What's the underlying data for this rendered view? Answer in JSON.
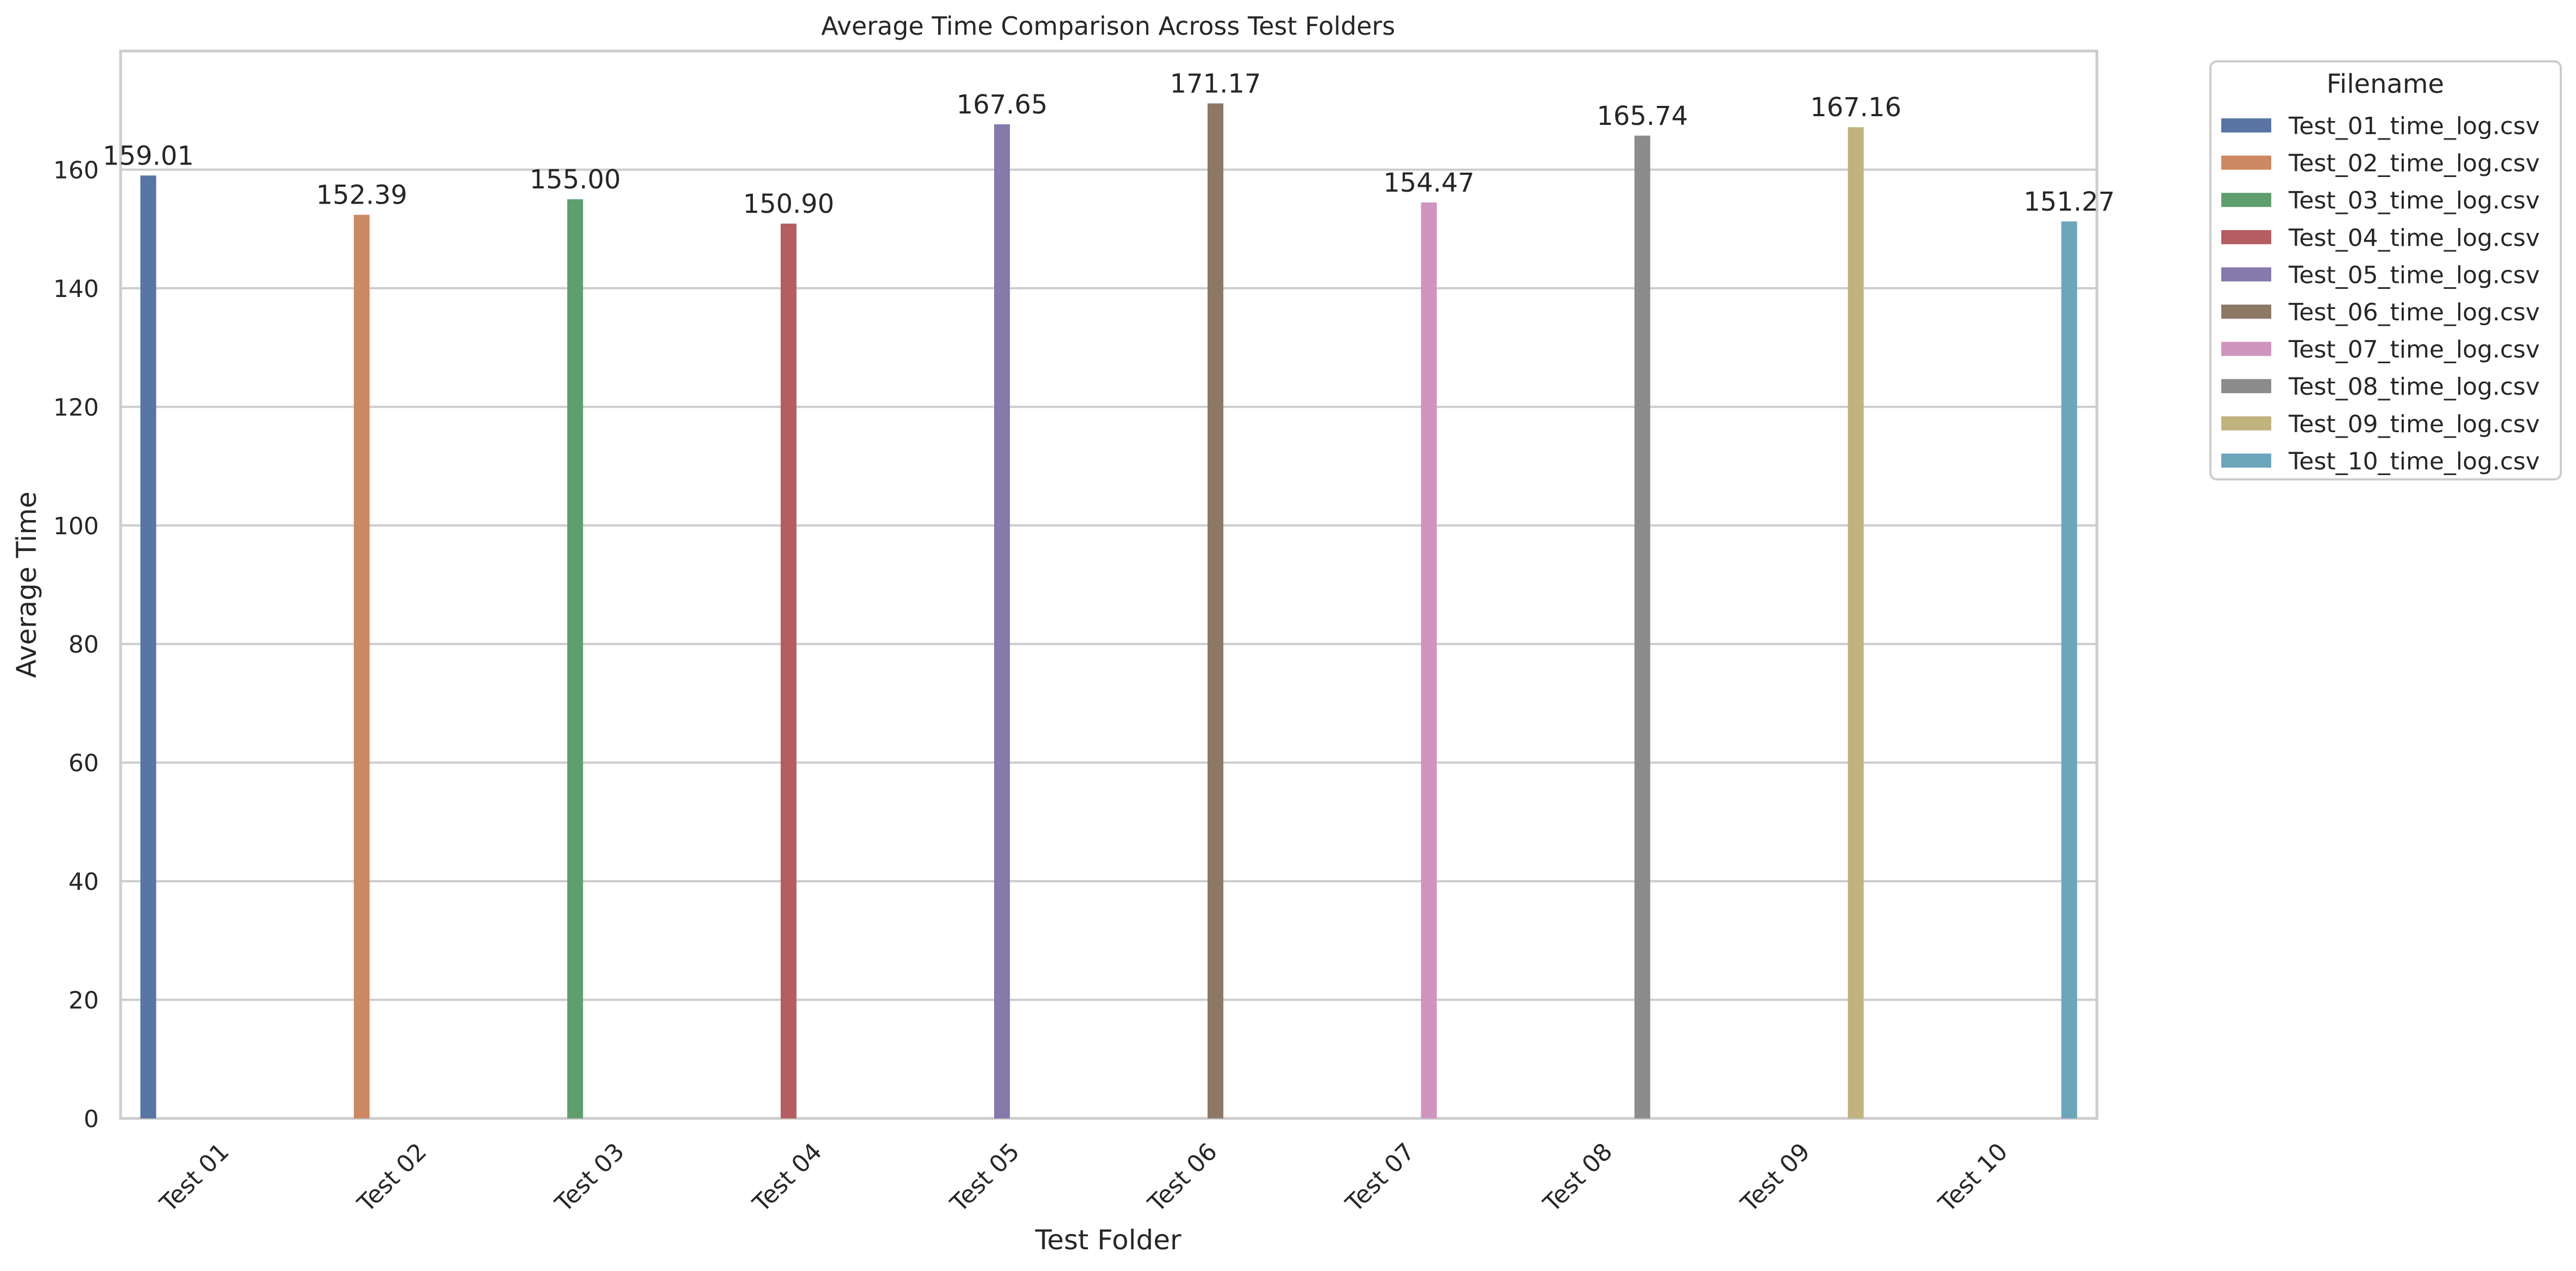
{
  "chart_data": {
    "type": "bar",
    "title": "Average Time Comparison Across Test Folders",
    "xlabel": "Test Folder",
    "ylabel": "Average Time",
    "ylim": [
      0,
      180
    ],
    "yticks": [
      0,
      20,
      40,
      60,
      80,
      100,
      120,
      140,
      160
    ],
    "grid": true,
    "legend_title": "Filename",
    "legend_position": "outside-top-right",
    "categories": [
      "Test 01",
      "Test 02",
      "Test 03",
      "Test 04",
      "Test 05",
      "Test 06",
      "Test 07",
      "Test 08",
      "Test 09",
      "Test 10"
    ],
    "series": [
      {
        "name": "Test_01_time_log.csv",
        "color": "#5875a4",
        "values": [
          159.01,
          null,
          null,
          null,
          null,
          null,
          null,
          null,
          null,
          null
        ],
        "label": "159.01"
      },
      {
        "name": "Test_02_time_log.csv",
        "color": "#cc8963",
        "values": [
          null,
          152.39,
          null,
          null,
          null,
          null,
          null,
          null,
          null,
          null
        ],
        "label": "152.39"
      },
      {
        "name": "Test_03_time_log.csv",
        "color": "#5f9e6e",
        "values": [
          null,
          null,
          155.0,
          null,
          null,
          null,
          null,
          null,
          null,
          null
        ],
        "label": "155.00"
      },
      {
        "name": "Test_04_time_log.csv",
        "color": "#b55d60",
        "values": [
          null,
          null,
          null,
          150.9,
          null,
          null,
          null,
          null,
          null,
          null
        ],
        "label": "150.90"
      },
      {
        "name": "Test_05_time_log.csv",
        "color": "#857aab",
        "values": [
          null,
          null,
          null,
          null,
          167.65,
          null,
          null,
          null,
          null,
          null
        ],
        "label": "167.65"
      },
      {
        "name": "Test_06_time_log.csv",
        "color": "#8d7866",
        "values": [
          null,
          null,
          null,
          null,
          null,
          171.17,
          null,
          null,
          null,
          null
        ],
        "label": "171.17"
      },
      {
        "name": "Test_07_time_log.csv",
        "color": "#d095bf",
        "values": [
          null,
          null,
          null,
          null,
          null,
          null,
          154.47,
          null,
          null,
          null
        ],
        "label": "154.47"
      },
      {
        "name": "Test_08_time_log.csv",
        "color": "#8c8c8c",
        "values": [
          null,
          null,
          null,
          null,
          null,
          null,
          null,
          165.74,
          null,
          null
        ],
        "label": "165.74"
      },
      {
        "name": "Test_09_time_log.csv",
        "color": "#c1b37f",
        "values": [
          null,
          null,
          null,
          null,
          null,
          null,
          null,
          null,
          167.16,
          null
        ],
        "label": "167.16"
      },
      {
        "name": "Test_10_time_log.csv",
        "color": "#6ca6bb",
        "values": [
          null,
          null,
          null,
          null,
          null,
          null,
          null,
          null,
          null,
          151.27
        ],
        "label": "151.27"
      }
    ]
  }
}
